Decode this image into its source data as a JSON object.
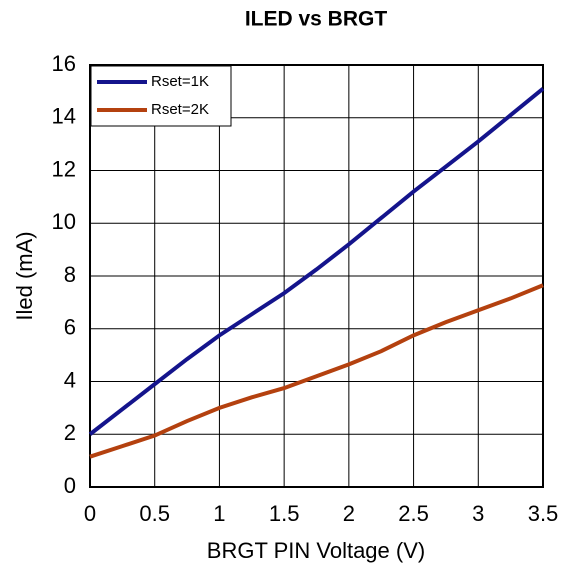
{
  "chart_data": {
    "type": "line",
    "title": "ILED vs BRGT",
    "x_label": "BRGT PIN Voltage (V)",
    "y_label": "Iled (mA)",
    "x": [
      0,
      0.25,
      0.5,
      0.75,
      1,
      1.25,
      1.5,
      1.75,
      2,
      2.25,
      2.5,
      2.75,
      3,
      3.25,
      3.5
    ],
    "series": [
      {
        "name": "Rset=1K",
        "color": "#14148c",
        "values": [
          2.0,
          2.95,
          3.9,
          4.85,
          5.75,
          6.55,
          7.35,
          8.25,
          9.2,
          10.2,
          11.2,
          12.15,
          13.1,
          14.1,
          15.1
        ]
      },
      {
        "name": "Rset=2K",
        "color": "#b4410f",
        "values": [
          1.15,
          1.55,
          1.95,
          2.5,
          3.0,
          3.4,
          3.75,
          4.2,
          4.65,
          5.15,
          5.75,
          6.25,
          6.7,
          7.15,
          7.65
        ]
      }
    ],
    "xlim": [
      0,
      3.5
    ],
    "xticks": [
      0,
      0.5,
      1,
      1.5,
      2,
      2.5,
      3,
      3.5
    ],
    "ylim": [
      0,
      16
    ],
    "yticks": [
      0,
      2,
      4,
      6,
      8,
      10,
      12,
      14,
      16
    ],
    "grid": true,
    "legend": "upper-left"
  }
}
